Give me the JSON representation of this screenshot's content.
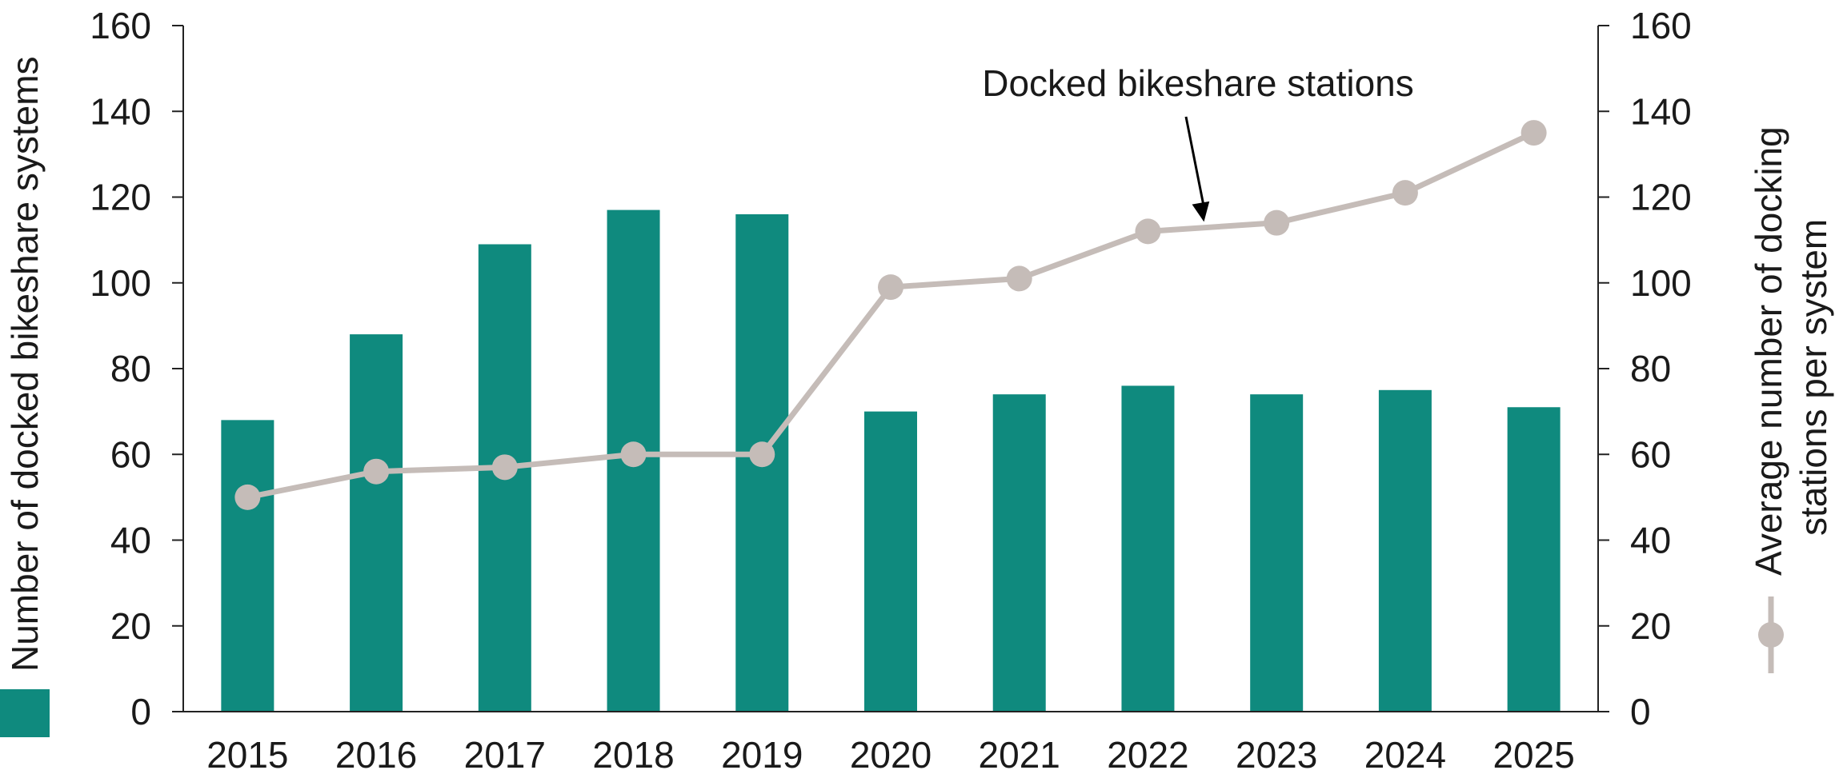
{
  "chart_data": {
    "type": "bar",
    "categories": [
      "2015",
      "2016",
      "2017",
      "2018",
      "2019",
      "2020",
      "2021",
      "2022",
      "2023",
      "2024",
      "2025"
    ],
    "series": [
      {
        "name": "Number of docked bikeshare systems",
        "type": "bar",
        "axis": "left",
        "values": [
          68,
          88,
          109,
          117,
          116,
          70,
          74,
          76,
          74,
          75,
          71
        ]
      },
      {
        "name": "Average number of docking stations per system",
        "type": "line",
        "axis": "right",
        "values": [
          50,
          56,
          57,
          60,
          60,
          99,
          101,
          112,
          114,
          121,
          135
        ]
      }
    ],
    "ylabel": "Number of docked bikeshare systems",
    "y2label": "Average number of docking stations per system",
    "ylabel2_lines": [
      "Average number of docking",
      "stations per system"
    ],
    "ylim": [
      0,
      160
    ],
    "y2lim": [
      0,
      160
    ],
    "yticks": [
      0,
      20,
      40,
      60,
      80,
      100,
      120,
      140,
      160
    ],
    "annotation": "Docked bikeshare stations",
    "annotation_target_index": 7,
    "colors": {
      "bar": "#0f8a7e",
      "line": "#c5bcb8",
      "axis": "#222222",
      "text": "#1a1a1a"
    },
    "grid": false,
    "legend": "axis-titles"
  }
}
